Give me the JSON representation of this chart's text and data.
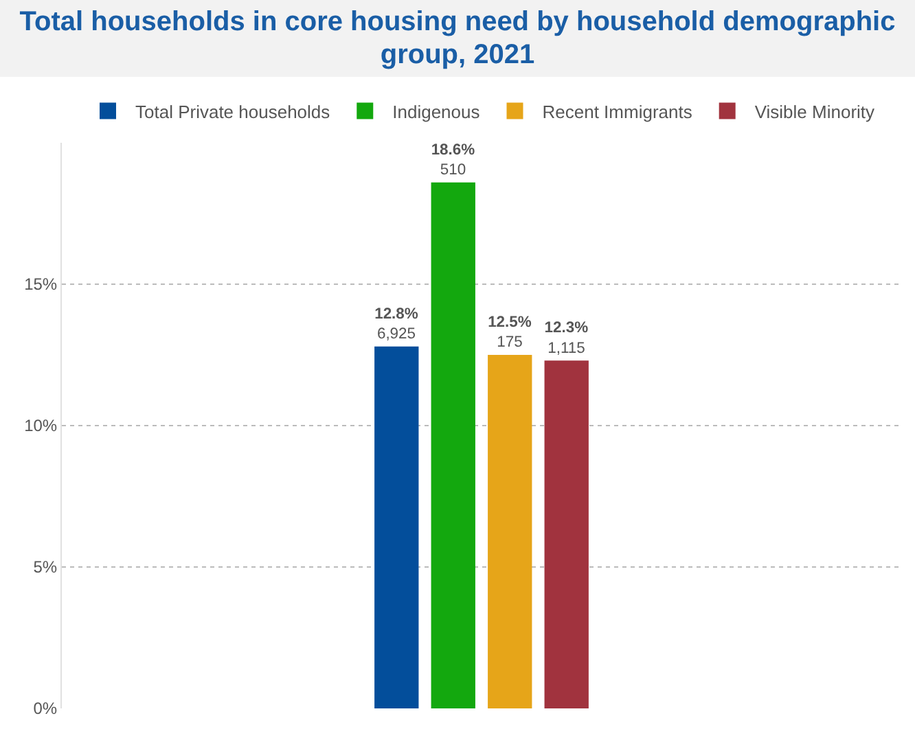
{
  "chart_data": {
    "type": "bar",
    "title": "Total households in core housing need by household demographic group, 2021",
    "categories": [
      null
    ],
    "series": [
      {
        "name": "Total Private households",
        "color": "#034e9b",
        "values": [
          12.8
        ],
        "value_labels": [
          "12.8%\n6,925"
        ]
      },
      {
        "name": "Indigenous",
        "color": "#13a80e",
        "values": [
          18.6
        ],
        "value_labels": [
          "18.6%\n510"
        ]
      },
      {
        "name": "Recent Immigrants",
        "color": "#e6a519",
        "values": [
          12.5
        ],
        "value_labels": [
          "12.5%\n175"
        ]
      },
      {
        "name": "Visible Minority",
        "color": "#a1333e",
        "values": [
          12.3
        ],
        "value_labels": [
          "12.3%\n1,115"
        ]
      }
    ],
    "ylim": [
      0,
      20
    ],
    "yticks": [
      {
        "value": 0,
        "label": "0%"
      },
      {
        "value": 5,
        "label": "5%"
      },
      {
        "value": 10,
        "label": "10%"
      },
      {
        "value": 15,
        "label": "15%"
      }
    ],
    "grid": "y",
    "legend": "top",
    "tick_labels": "y"
  }
}
